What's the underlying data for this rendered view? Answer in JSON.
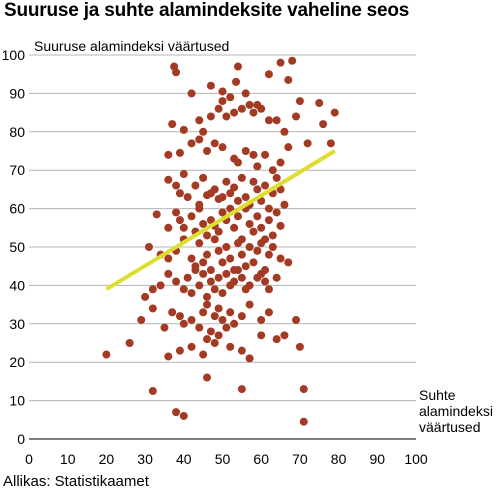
{
  "title": "Suuruse ja suhte alamindeksite vaheline seos",
  "source": "Allikas: Statistikaamet",
  "chart_data": {
    "type": "scatter",
    "title": "Suuruse ja suhte alamindeksite vaheline seos",
    "ylabel": "Suuruse alamindeksi väärtused",
    "xlabel_lines": [
      "Suhte",
      "alamindeksi",
      "väärtused"
    ],
    "xlim": [
      0,
      100
    ],
    "ylim": [
      0,
      100
    ],
    "xticks": [
      "0",
      "10",
      "20",
      "30",
      "40",
      "50",
      "60",
      "70",
      "80",
      "90",
      "100"
    ],
    "yticks": [
      "0",
      "10",
      "20",
      "30",
      "40",
      "50",
      "60",
      "70",
      "80",
      "90",
      "100"
    ],
    "grid": "horizontal",
    "point_color": "#a33a23",
    "trend_color": "#dede31",
    "trend_line": {
      "x": [
        20,
        79
      ],
      "y": [
        39,
        75
      ]
    },
    "points": [
      [
        37.5,
        97
      ],
      [
        38,
        95.5
      ],
      [
        42,
        90
      ],
      [
        47,
        92
      ],
      [
        50,
        90.5
      ],
      [
        52,
        89
      ],
      [
        53.5,
        93
      ],
      [
        54,
        97
      ],
      [
        56,
        90
      ],
      [
        59,
        87
      ],
      [
        62,
        95
      ],
      [
        65,
        98
      ],
      [
        67,
        93.5
      ],
      [
        68,
        98.5
      ],
      [
        70,
        88
      ],
      [
        75,
        87.5
      ],
      [
        79,
        85
      ],
      [
        37,
        82
      ],
      [
        40,
        80.5
      ],
      [
        44,
        83
      ],
      [
        45,
        80
      ],
      [
        47,
        84
      ],
      [
        49,
        86
      ],
      [
        50,
        88
      ],
      [
        51,
        84
      ],
      [
        53,
        85
      ],
      [
        55,
        86
      ],
      [
        57,
        87
      ],
      [
        58,
        85
      ],
      [
        60,
        86
      ],
      [
        62,
        83
      ],
      [
        64,
        83
      ],
      [
        66,
        80
      ],
      [
        69,
        84
      ],
      [
        72,
        77
      ],
      [
        76,
        82
      ],
      [
        36,
        74
      ],
      [
        39,
        74.5
      ],
      [
        42,
        77
      ],
      [
        44,
        78
      ],
      [
        46,
        75
      ],
      [
        48,
        77
      ],
      [
        50,
        76
      ],
      [
        53,
        73
      ],
      [
        54,
        72
      ],
      [
        56,
        75
      ],
      [
        58,
        74
      ],
      [
        59,
        71
      ],
      [
        61,
        74
      ],
      [
        63,
        70
      ],
      [
        65,
        72
      ],
      [
        67,
        76
      ],
      [
        78,
        77
      ],
      [
        36,
        67.5
      ],
      [
        38,
        66
      ],
      [
        39,
        64
      ],
      [
        40,
        69
      ],
      [
        41,
        63
      ],
      [
        43,
        66
      ],
      [
        44,
        61
      ],
      [
        45,
        68
      ],
      [
        46,
        63.5
      ],
      [
        47,
        64
      ],
      [
        48,
        65
      ],
      [
        49,
        62.5
      ],
      [
        50,
        63
      ],
      [
        51,
        67
      ],
      [
        52,
        64
      ],
      [
        53,
        65.5
      ],
      [
        54,
        62
      ],
      [
        55,
        68
      ],
      [
        56,
        63
      ],
      [
        57,
        61
      ],
      [
        58,
        67
      ],
      [
        59,
        65
      ],
      [
        60,
        62
      ],
      [
        61,
        66
      ],
      [
        62,
        60
      ],
      [
        63,
        64
      ],
      [
        64,
        68
      ],
      [
        65,
        65
      ],
      [
        66,
        61
      ],
      [
        33,
        58.5
      ],
      [
        36,
        55
      ],
      [
        38,
        59
      ],
      [
        39,
        57
      ],
      [
        40,
        55
      ],
      [
        42,
        58
      ],
      [
        43,
        54
      ],
      [
        44,
        60
      ],
      [
        45,
        56
      ],
      [
        46,
        53
      ],
      [
        47,
        57
      ],
      [
        48,
        55.5
      ],
      [
        49,
        54
      ],
      [
        50,
        59
      ],
      [
        51,
        57
      ],
      [
        52,
        60
      ],
      [
        53,
        55
      ],
      [
        54,
        58
      ],
      [
        55,
        52
      ],
      [
        56,
        60
      ],
      [
        57,
        56
      ],
      [
        58,
        54
      ],
      [
        59,
        58
      ],
      [
        60,
        55
      ],
      [
        61,
        52
      ],
      [
        62,
        57
      ],
      [
        63,
        53
      ],
      [
        64,
        59
      ],
      [
        65,
        55.5
      ],
      [
        31,
        50
      ],
      [
        34,
        48
      ],
      [
        36,
        47
      ],
      [
        38,
        49
      ],
      [
        40,
        52
      ],
      [
        42,
        47
      ],
      [
        43,
        45
      ],
      [
        44,
        51
      ],
      [
        45,
        46
      ],
      [
        46,
        48
      ],
      [
        47,
        44
      ],
      [
        48,
        52
      ],
      [
        49,
        49
      ],
      [
        50,
        46
      ],
      [
        51,
        50
      ],
      [
        52,
        47
      ],
      [
        53,
        44
      ],
      [
        54,
        51
      ],
      [
        55,
        48
      ],
      [
        56,
        45
      ],
      [
        57,
        50
      ],
      [
        58,
        46
      ],
      [
        59,
        49
      ],
      [
        60,
        51
      ],
      [
        61,
        44
      ],
      [
        62,
        48
      ],
      [
        63,
        50
      ],
      [
        65,
        47
      ],
      [
        67,
        46
      ],
      [
        30,
        37
      ],
      [
        32,
        39
      ],
      [
        34,
        40
      ],
      [
        36,
        43
      ],
      [
        38,
        41
      ],
      [
        40,
        39
      ],
      [
        41,
        42
      ],
      [
        42,
        38
      ],
      [
        43,
        44
      ],
      [
        44,
        40
      ],
      [
        45,
        43
      ],
      [
        46,
        37
      ],
      [
        47,
        41
      ],
      [
        48,
        39
      ],
      [
        49,
        42
      ],
      [
        50,
        38
      ],
      [
        51,
        43
      ],
      [
        52,
        40
      ],
      [
        53,
        41
      ],
      [
        54,
        44
      ],
      [
        55,
        42
      ],
      [
        56,
        39
      ],
      [
        57,
        40
      ],
      [
        59,
        42
      ],
      [
        60,
        43
      ],
      [
        61,
        41
      ],
      [
        62,
        39
      ],
      [
        64,
        42
      ],
      [
        29,
        31
      ],
      [
        32,
        34
      ],
      [
        35,
        29
      ],
      [
        37,
        33
      ],
      [
        39,
        32
      ],
      [
        40,
        30
      ],
      [
        42,
        31
      ],
      [
        44,
        29
      ],
      [
        45,
        33
      ],
      [
        46,
        35
      ],
      [
        47,
        28
      ],
      [
        48,
        32
      ],
      [
        49,
        34
      ],
      [
        50,
        31
      ],
      [
        51,
        29
      ],
      [
        52,
        33
      ],
      [
        53,
        30
      ],
      [
        55,
        32
      ],
      [
        57,
        35
      ],
      [
        60,
        31
      ],
      [
        62,
        33
      ],
      [
        69,
        31
      ],
      [
        20,
        22
      ],
      [
        26,
        25
      ],
      [
        36,
        21.5
      ],
      [
        39,
        23
      ],
      [
        42,
        24
      ],
      [
        45,
        22
      ],
      [
        46,
        26
      ],
      [
        48,
        25
      ],
      [
        49,
        27
      ],
      [
        52,
        24
      ],
      [
        55,
        23
      ],
      [
        57,
        21
      ],
      [
        60,
        27
      ],
      [
        64,
        26
      ],
      [
        66,
        27
      ],
      [
        70,
        24
      ],
      [
        32,
        12.5
      ],
      [
        38,
        7
      ],
      [
        40,
        6
      ],
      [
        46,
        16
      ],
      [
        55,
        13
      ],
      [
        71,
        13
      ],
      [
        71,
        4.5
      ]
    ]
  }
}
